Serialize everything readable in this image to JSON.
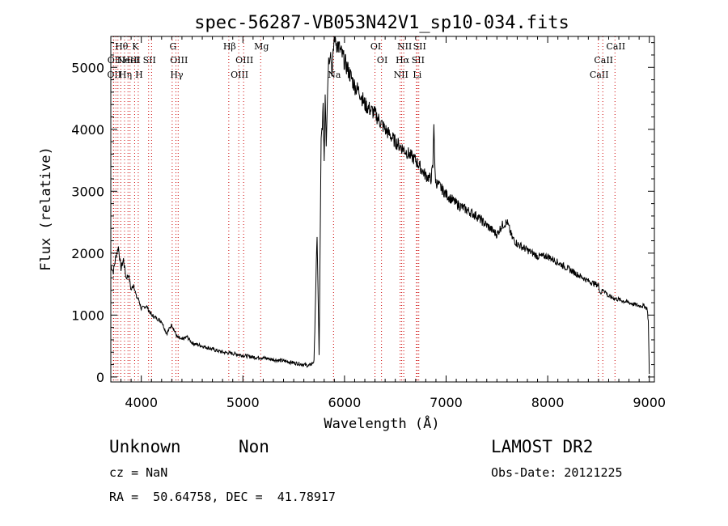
{
  "chart_data": {
    "type": "line",
    "title": "spec-56287-VB053N42V1_sp10-034.fits",
    "xlabel": "Wavelength (Å)",
    "ylabel": "Flux (relative)",
    "xlim": [
      3700,
      9050
    ],
    "ylim": [
      -80,
      5500
    ],
    "x_ticks": [
      4000,
      5000,
      6000,
      7000,
      8000,
      9000
    ],
    "y_ticks": [
      0,
      1000,
      2000,
      3000,
      4000,
      5000
    ],
    "grid": false,
    "line_color": "#000000",
    "marker_color": "#cc0000",
    "series": [
      {
        "x": [
          3700,
          3725,
          3750,
          3775,
          3800,
          3825,
          3850,
          3875,
          3900,
          3925,
          3950,
          3975,
          4000,
          4050,
          4100,
          4150,
          4200,
          4250,
          4300,
          4350,
          4400,
          4450,
          4500,
          4600,
          4700,
          4800,
          4900,
          5000,
          5100,
          5200,
          5300,
          5400,
          5500,
          5600,
          5650,
          5700,
          5730,
          5750,
          5770,
          5790,
          5800,
          5810,
          5820,
          5830,
          5840,
          5860,
          5880,
          5900,
          5920,
          5950,
          6000,
          6050,
          6100,
          6150,
          6200,
          6300,
          6400,
          6500,
          6600,
          6700,
          6800,
          6850,
          6870,
          6880,
          6890,
          6900,
          6950,
          7000,
          7100,
          7200,
          7300,
          7400,
          7500,
          7550,
          7600,
          7650,
          7700,
          7800,
          7900,
          8000,
          8100,
          8200,
          8300,
          8400,
          8500,
          8520,
          8550,
          8600,
          8700,
          8800,
          8900,
          8950,
          8980,
          8990,
          9000
        ],
        "y": [
          1800,
          1700,
          1950,
          2100,
          1750,
          1900,
          1600,
          1650,
          1400,
          1500,
          1300,
          1250,
          1100,
          1150,
          1000,
          950,
          900,
          700,
          850,
          650,
          600,
          650,
          550,
          500,
          450,
          400,
          380,
          350,
          320,
          310,
          280,
          260,
          230,
          200,
          180,
          250,
          2300,
          350,
          3800,
          4300,
          3500,
          4600,
          3800,
          4400,
          5050,
          5300,
          4900,
          5550,
          5400,
          5300,
          5100,
          4900,
          4700,
          4600,
          4400,
          4250,
          4000,
          3800,
          3650,
          3500,
          3250,
          3200,
          3400,
          4150,
          3300,
          3150,
          3050,
          2950,
          2800,
          2700,
          2600,
          2450,
          2300,
          2450,
          2500,
          2250,
          2150,
          2050,
          1950,
          1950,
          1850,
          1750,
          1650,
          1550,
          1480,
          1350,
          1420,
          1300,
          1250,
          1200,
          1150,
          1150,
          1100,
          900,
          50
        ]
      }
    ],
    "lines": [
      {
        "x": 3726,
        "label": "OII",
        "row": 2
      },
      {
        "x": 3729,
        "label": "OII",
        "row": 1
      },
      {
        "x": 3750,
        "label": "",
        "row": 0
      },
      {
        "x": 3770,
        "label": "",
        "row": 0
      },
      {
        "x": 3798,
        "label": "Hθ",
        "row": 0
      },
      {
        "x": 3835,
        "label": "Hη",
        "row": 2
      },
      {
        "x": 3869,
        "label": "NeIII",
        "row": 1
      },
      {
        "x": 3889,
        "label": "HeI",
        "row": 1
      },
      {
        "x": 3934,
        "label": "K",
        "row": 0
      },
      {
        "x": 3970,
        "label": "H",
        "row": 2
      },
      {
        "x": 4072,
        "label": "SII",
        "row": 1
      },
      {
        "x": 4101,
        "label": "",
        "row": 0
      },
      {
        "x": 4304,
        "label": "G",
        "row": 0
      },
      {
        "x": 4341,
        "label": "Hγ",
        "row": 2
      },
      {
        "x": 4363,
        "label": "OIII",
        "row": 1
      },
      {
        "x": 4861,
        "label": "Hβ",
        "row": 0
      },
      {
        "x": 4959,
        "label": "OIII",
        "row": 2
      },
      {
        "x": 5007,
        "label": "OIII",
        "row": 1
      },
      {
        "x": 5175,
        "label": "Mg",
        "row": 0
      },
      {
        "x": 5892,
        "label": "Na",
        "row": 2
      },
      {
        "x": 6300,
        "label": "OI",
        "row": 0
      },
      {
        "x": 6364,
        "label": "OI",
        "row": 1
      },
      {
        "x": 6548,
        "label": "NII",
        "row": 2
      },
      {
        "x": 6563,
        "label": "Hα",
        "row": 1
      },
      {
        "x": 6583,
        "label": "NII",
        "row": 0
      },
      {
        "x": 6708,
        "label": "Li",
        "row": 2
      },
      {
        "x": 6716,
        "label": "SII",
        "row": 1
      },
      {
        "x": 6731,
        "label": "SII",
        "row": 0
      },
      {
        "x": 8498,
        "label": "CaII",
        "row": 2
      },
      {
        "x": 8542,
        "label": "CaII",
        "row": 1
      },
      {
        "x": 8662,
        "label": "CaII",
        "row": 0
      }
    ]
  },
  "info": {
    "class": "Unknown",
    "subclass": "Non",
    "survey": "LAMOST DR2",
    "cz": "cz = NaN",
    "obsdate": "Obs-Date: 20121225",
    "radec": "RA =  50.64758, DEC =  41.78917"
  }
}
